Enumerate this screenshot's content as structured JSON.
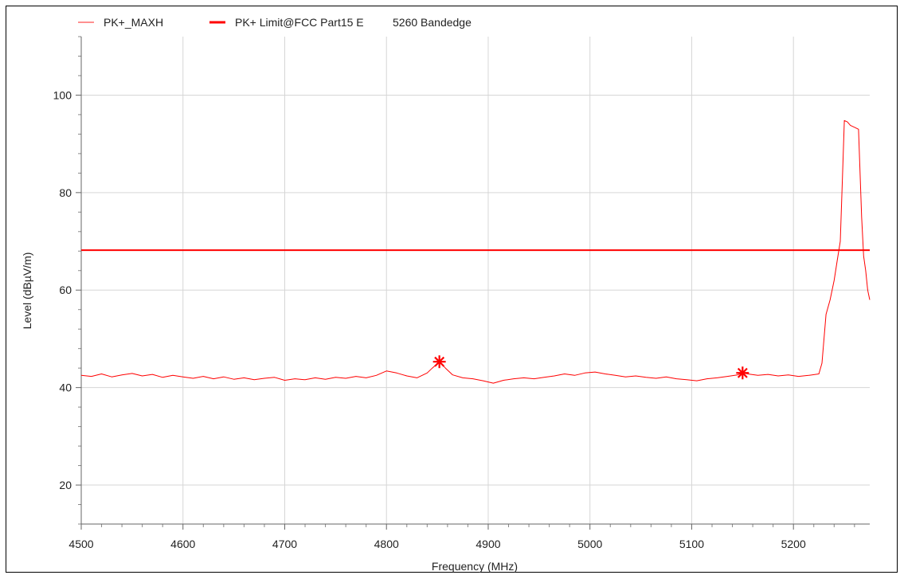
{
  "chart_data": {
    "type": "line",
    "xlabel": "Frequency (MHz)",
    "ylabel": "Level (dBµV/m)",
    "xlim": [
      4500,
      5275
    ],
    "ylim": [
      12,
      112
    ],
    "x_ticks": [
      4500,
      4600,
      4700,
      4800,
      4900,
      5000,
      5100,
      5200
    ],
    "y_ticks": [
      20,
      40,
      60,
      80,
      100
    ],
    "grid": true,
    "legend_position": "top-left",
    "series": [
      {
        "name": "PK+_MAXH",
        "color": "#ff0000",
        "x": [
          4500,
          4510,
          4520,
          4530,
          4540,
          4550,
          4560,
          4570,
          4580,
          4590,
          4600,
          4610,
          4620,
          4630,
          4640,
          4650,
          4660,
          4670,
          4680,
          4690,
          4700,
          4710,
          4720,
          4730,
          4740,
          4750,
          4760,
          4770,
          4780,
          4790,
          4800,
          4810,
          4820,
          4830,
          4840,
          4845,
          4852,
          4858,
          4865,
          4875,
          4885,
          4895,
          4905,
          4915,
          4925,
          4935,
          4945,
          4955,
          4965,
          4975,
          4985,
          4995,
          5005,
          5015,
          5025,
          5035,
          5045,
          5055,
          5065,
          5075,
          5085,
          5095,
          5105,
          5115,
          5125,
          5135,
          5145,
          5150,
          5155,
          5165,
          5175,
          5185,
          5195,
          5205,
          5215,
          5225,
          5228,
          5232,
          5236,
          5240,
          5243,
          5246,
          5248,
          5250,
          5253,
          5256,
          5260,
          5264,
          5267,
          5269,
          5271,
          5273,
          5275
        ],
        "y": [
          42.5,
          42.3,
          42.8,
          42.2,
          42.6,
          42.9,
          42.4,
          42.7,
          42.1,
          42.5,
          42.2,
          41.9,
          42.3,
          41.8,
          42.2,
          41.7,
          42.0,
          41.6,
          41.9,
          42.1,
          41.5,
          41.8,
          41.6,
          42.0,
          41.7,
          42.1,
          41.9,
          42.3,
          42.0,
          42.5,
          43.4,
          43.0,
          42.4,
          42.0,
          43.0,
          44.0,
          45.3,
          44.0,
          42.6,
          42.0,
          41.8,
          41.4,
          40.9,
          41.5,
          41.8,
          42.0,
          41.8,
          42.1,
          42.4,
          42.8,
          42.5,
          43.0,
          43.2,
          42.8,
          42.5,
          42.2,
          42.4,
          42.1,
          41.9,
          42.2,
          41.8,
          41.6,
          41.4,
          41.8,
          42.0,
          42.3,
          42.6,
          43.0,
          42.8,
          42.5,
          42.7,
          42.4,
          42.6,
          42.3,
          42.5,
          42.8,
          45.0,
          55.0,
          58.0,
          62.0,
          66.0,
          70.0,
          82.0,
          94.8,
          94.5,
          93.8,
          93.4,
          93.0,
          75.0,
          67.0,
          64.0,
          60.0,
          58.0
        ]
      },
      {
        "name": "PK+ Limit@FCC Part15 E",
        "color": "#ff0000",
        "x": [
          4500,
          5275
        ],
        "y": [
          68.2,
          68.2
        ]
      }
    ],
    "markers": [
      {
        "x": 4852,
        "y": 45.3
      },
      {
        "x": 5150,
        "y": 43.0
      }
    ],
    "legend_extra": "5260 Bandedge"
  }
}
